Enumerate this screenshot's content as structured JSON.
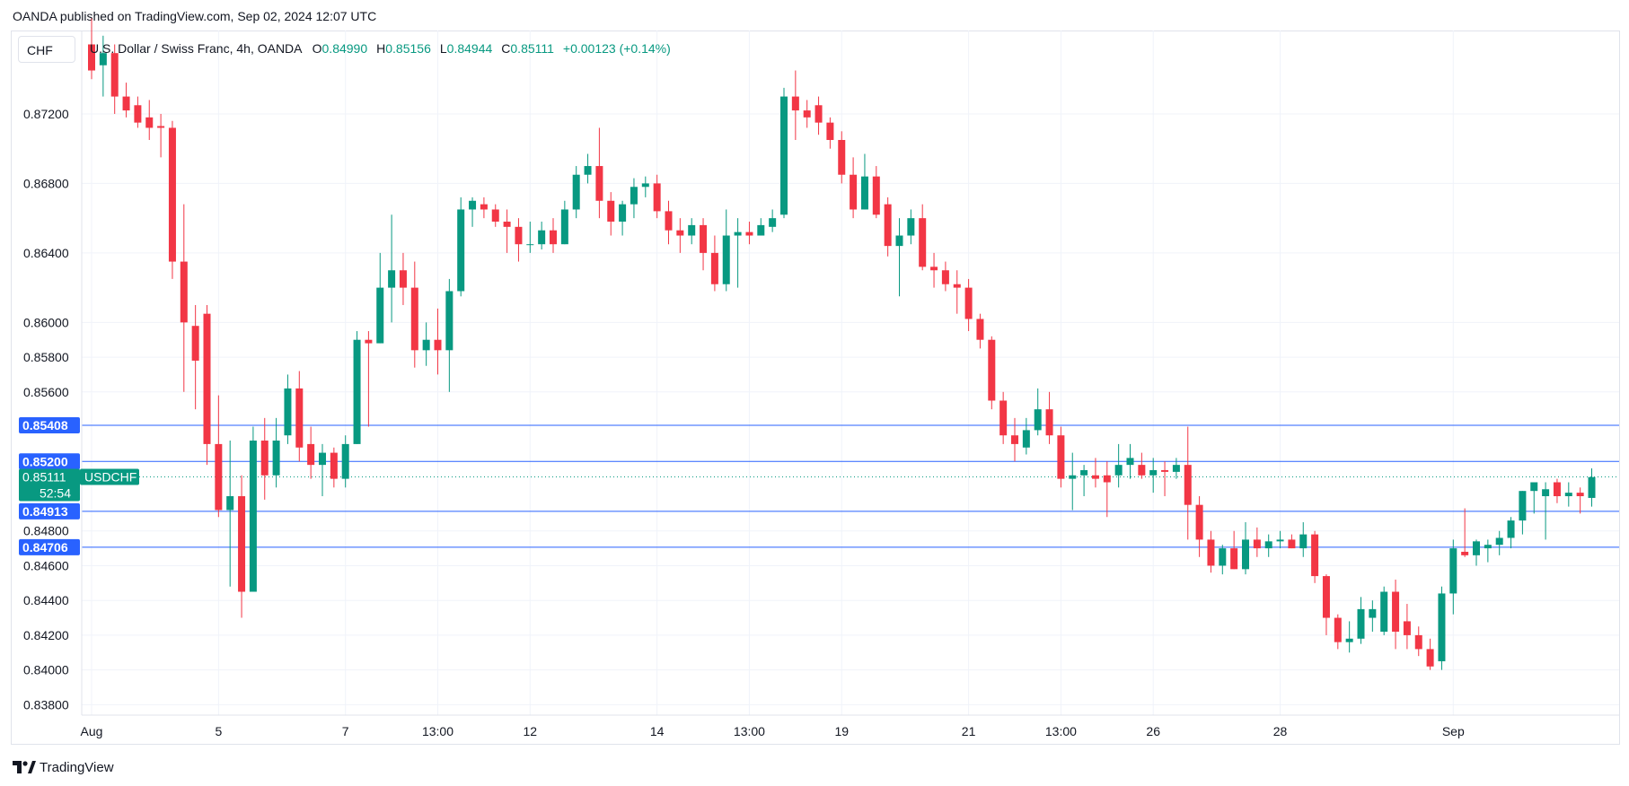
{
  "header": {
    "published": "OANDA published on TradingView.com, Sep 02, 2024 12:07 UTC"
  },
  "currency_selector": "CHF",
  "legend": {
    "title": "U.S. Dollar / Swiss Franc, 4h, OANDA",
    "o_label": "O",
    "o_value": "0.84990",
    "h_label": "H",
    "h_value": "0.85156",
    "l_label": "L",
    "l_value": "0.84944",
    "c_label": "C",
    "c_value": "0.85111",
    "change": "+0.00123 (+0.14%)"
  },
  "branding": "TradingView",
  "colors": {
    "up": "#089981",
    "down": "#f23645",
    "hline": "#2962ff",
    "label_bg": "#2962ff",
    "grid": "#f0f3fa"
  },
  "chart_data": {
    "type": "candlestick",
    "symbol": "USDCHF",
    "interval": "4h",
    "ylim": [
      0.8374,
      0.8768
    ],
    "y_ticks": [
      "0.87200",
      "0.86800",
      "0.86400",
      "0.86000",
      "0.85800",
      "0.85600",
      "0.84800",
      "0.84600",
      "0.84400",
      "0.84200",
      "0.84000",
      "0.83800"
    ],
    "x_ticks": [
      {
        "label": "Aug",
        "i": 0
      },
      {
        "label": "5",
        "i": 11
      },
      {
        "label": "7",
        "i": 22
      },
      {
        "label": "13:00",
        "i": 30
      },
      {
        "label": "12",
        "i": 38
      },
      {
        "label": "14",
        "i": 49
      },
      {
        "label": "13:00",
        "i": 57
      },
      {
        "label": "19",
        "i": 65
      },
      {
        "label": "21",
        "i": 76
      },
      {
        "label": "13:00",
        "i": 84
      },
      {
        "label": "26",
        "i": 92
      },
      {
        "label": "28",
        "i": 103
      },
      {
        "label": "Sep",
        "i": 118
      }
    ],
    "horizontal_lines": [
      "0.85408",
      "0.85200",
      "0.84913",
      "0.84706"
    ],
    "current_price": {
      "value": "0.85111",
      "countdown": "52:54",
      "label": "USDCHF"
    },
    "candles": [
      [
        0.876,
        0.8775,
        0.874,
        0.8745
      ],
      [
        0.8748,
        0.8765,
        0.873,
        0.8755
      ],
      [
        0.8755,
        0.876,
        0.872,
        0.873
      ],
      [
        0.873,
        0.8738,
        0.8718,
        0.8722
      ],
      [
        0.8725,
        0.873,
        0.8712,
        0.8715
      ],
      [
        0.8718,
        0.8728,
        0.8705,
        0.8712
      ],
      [
        0.8713,
        0.872,
        0.8695,
        0.8712
      ],
      [
        0.8712,
        0.8716,
        0.8625,
        0.8635
      ],
      [
        0.8635,
        0.8668,
        0.856,
        0.86
      ],
      [
        0.8598,
        0.861,
        0.855,
        0.8578
      ],
      [
        0.8605,
        0.861,
        0.8518,
        0.853
      ],
      [
        0.853,
        0.8558,
        0.8488,
        0.8492
      ],
      [
        0.8492,
        0.8532,
        0.8448,
        0.85
      ],
      [
        0.85,
        0.8512,
        0.843,
        0.8445
      ],
      [
        0.8445,
        0.854,
        0.8445,
        0.8532
      ],
      [
        0.8532,
        0.8545,
        0.8498,
        0.8512
      ],
      [
        0.8512,
        0.8545,
        0.8505,
        0.8532
      ],
      [
        0.8535,
        0.857,
        0.853,
        0.8562
      ],
      [
        0.8562,
        0.8572,
        0.852,
        0.8528
      ],
      [
        0.853,
        0.854,
        0.851,
        0.8518
      ],
      [
        0.8518,
        0.853,
        0.85,
        0.8525
      ],
      [
        0.8525,
        0.8528,
        0.8505,
        0.851
      ],
      [
        0.851,
        0.8535,
        0.8505,
        0.853
      ],
      [
        0.853,
        0.8595,
        0.853,
        0.859
      ],
      [
        0.859,
        0.8595,
        0.854,
        0.8588
      ],
      [
        0.8588,
        0.864,
        0.8588,
        0.862
      ],
      [
        0.862,
        0.8662,
        0.86,
        0.863
      ],
      [
        0.863,
        0.864,
        0.861,
        0.862
      ],
      [
        0.862,
        0.8635,
        0.8574,
        0.8584
      ],
      [
        0.8584,
        0.86,
        0.8575,
        0.859
      ],
      [
        0.859,
        0.8608,
        0.857,
        0.8584
      ],
      [
        0.8584,
        0.8625,
        0.856,
        0.8618
      ],
      [
        0.8618,
        0.8672,
        0.8615,
        0.8665
      ],
      [
        0.8665,
        0.8672,
        0.8655,
        0.867
      ],
      [
        0.8668,
        0.8672,
        0.866,
        0.8665
      ],
      [
        0.8665,
        0.8668,
        0.8655,
        0.8658
      ],
      [
        0.8658,
        0.8665,
        0.864,
        0.8655
      ],
      [
        0.8655,
        0.866,
        0.8635,
        0.8645
      ],
      [
        0.8645,
        0.8658,
        0.864,
        0.8645
      ],
      [
        0.8645,
        0.8658,
        0.8642,
        0.8653
      ],
      [
        0.8653,
        0.866,
        0.864,
        0.8645
      ],
      [
        0.8645,
        0.867,
        0.8645,
        0.8665
      ],
      [
        0.8665,
        0.869,
        0.866,
        0.8685
      ],
      [
        0.8685,
        0.8697,
        0.868,
        0.869
      ],
      [
        0.869,
        0.8712,
        0.866,
        0.867
      ],
      [
        0.867,
        0.8675,
        0.865,
        0.8658
      ],
      [
        0.8658,
        0.867,
        0.865,
        0.8668
      ],
      [
        0.8668,
        0.8683,
        0.866,
        0.8678
      ],
      [
        0.8678,
        0.8684,
        0.8672,
        0.868
      ],
      [
        0.868,
        0.8685,
        0.866,
        0.8664
      ],
      [
        0.8664,
        0.867,
        0.8645,
        0.8653
      ],
      [
        0.8653,
        0.866,
        0.864,
        0.865
      ],
      [
        0.865,
        0.866,
        0.8645,
        0.8656
      ],
      [
        0.8656,
        0.866,
        0.863,
        0.864
      ],
      [
        0.864,
        0.865,
        0.8618,
        0.8622
      ],
      [
        0.8622,
        0.8665,
        0.8618,
        0.865
      ],
      [
        0.865,
        0.866,
        0.862,
        0.8652
      ],
      [
        0.8652,
        0.8658,
        0.8645,
        0.865
      ],
      [
        0.865,
        0.866,
        0.865,
        0.8656
      ],
      [
        0.8655,
        0.8665,
        0.8652,
        0.866
      ],
      [
        0.8662,
        0.8735,
        0.866,
        0.873
      ],
      [
        0.873,
        0.8745,
        0.8705,
        0.8722
      ],
      [
        0.8722,
        0.8728,
        0.8712,
        0.8718
      ],
      [
        0.8725,
        0.873,
        0.8708,
        0.8715
      ],
      [
        0.8715,
        0.8718,
        0.87,
        0.8705
      ],
      [
        0.8705,
        0.871,
        0.868,
        0.8685
      ],
      [
        0.8685,
        0.8695,
        0.866,
        0.8665
      ],
      [
        0.8665,
        0.8697,
        0.8665,
        0.8684
      ],
      [
        0.8684,
        0.869,
        0.866,
        0.8662
      ],
      [
        0.8668,
        0.8672,
        0.8638,
        0.8644
      ],
      [
        0.8644,
        0.866,
        0.8615,
        0.865
      ],
      [
        0.865,
        0.8665,
        0.8645,
        0.866
      ],
      [
        0.866,
        0.8668,
        0.863,
        0.8632
      ],
      [
        0.8632,
        0.864,
        0.862,
        0.863
      ],
      [
        0.863,
        0.8635,
        0.8618,
        0.8622
      ],
      [
        0.8622,
        0.863,
        0.8605,
        0.862
      ],
      [
        0.862,
        0.8625,
        0.8595,
        0.8602
      ],
      [
        0.8602,
        0.8605,
        0.8585,
        0.859
      ],
      [
        0.859,
        0.8592,
        0.855,
        0.8555
      ],
      [
        0.8555,
        0.856,
        0.853,
        0.8535
      ],
      [
        0.8535,
        0.8545,
        0.852,
        0.853
      ],
      [
        0.8528,
        0.8545,
        0.8524,
        0.8538
      ],
      [
        0.8538,
        0.8562,
        0.8535,
        0.855
      ],
      [
        0.855,
        0.856,
        0.853,
        0.8535
      ],
      [
        0.8535,
        0.854,
        0.8505,
        0.851
      ],
      [
        0.851,
        0.8525,
        0.8492,
        0.8512
      ],
      [
        0.8512,
        0.8518,
        0.85,
        0.8515
      ],
      [
        0.8512,
        0.8522,
        0.8505,
        0.851
      ],
      [
        0.8512,
        0.852,
        0.8488,
        0.8508
      ],
      [
        0.8512,
        0.853,
        0.8505,
        0.8518
      ],
      [
        0.8518,
        0.853,
        0.851,
        0.8522
      ],
      [
        0.8518,
        0.8525,
        0.851,
        0.8512
      ],
      [
        0.8512,
        0.8522,
        0.8502,
        0.8515
      ],
      [
        0.8515,
        0.852,
        0.85,
        0.8514
      ],
      [
        0.8514,
        0.8522,
        0.851,
        0.8518
      ],
      [
        0.8518,
        0.854,
        0.8475,
        0.8495
      ],
      [
        0.8495,
        0.85,
        0.8465,
        0.8475
      ],
      [
        0.8475,
        0.848,
        0.8456,
        0.846
      ],
      [
        0.846,
        0.8472,
        0.8455,
        0.847
      ],
      [
        0.847,
        0.848,
        0.8458,
        0.8458
      ],
      [
        0.8458,
        0.8485,
        0.8455,
        0.8475
      ],
      [
        0.8475,
        0.8482,
        0.8465,
        0.847
      ],
      [
        0.847,
        0.8478,
        0.8465,
        0.8474
      ],
      [
        0.8474,
        0.848,
        0.847,
        0.8475
      ],
      [
        0.8475,
        0.8478,
        0.847,
        0.847
      ],
      [
        0.847,
        0.8485,
        0.8465,
        0.8478
      ],
      [
        0.8478,
        0.848,
        0.845,
        0.8454
      ],
      [
        0.8454,
        0.8455,
        0.842,
        0.843
      ],
      [
        0.843,
        0.8432,
        0.8412,
        0.8416
      ],
      [
        0.8416,
        0.8428,
        0.841,
        0.8418
      ],
      [
        0.8418,
        0.8442,
        0.8415,
        0.8435
      ],
      [
        0.843,
        0.844,
        0.8422,
        0.8435
      ],
      [
        0.8422,
        0.8448,
        0.842,
        0.8445
      ],
      [
        0.8445,
        0.8452,
        0.8412,
        0.8422
      ],
      [
        0.8428,
        0.8438,
        0.8412,
        0.842
      ],
      [
        0.842,
        0.8425,
        0.8408,
        0.8412
      ],
      [
        0.8412,
        0.8418,
        0.84,
        0.8402
      ],
      [
        0.8405,
        0.8448,
        0.84,
        0.8444
      ],
      [
        0.8444,
        0.8475,
        0.8432,
        0.847
      ],
      [
        0.8468,
        0.8493,
        0.8465,
        0.8466
      ],
      [
        0.8466,
        0.8475,
        0.846,
        0.8474
      ],
      [
        0.847,
        0.8475,
        0.8462,
        0.8472
      ],
      [
        0.8472,
        0.848,
        0.8466,
        0.8476
      ],
      [
        0.8476,
        0.8488,
        0.847,
        0.8486
      ],
      [
        0.8486,
        0.8503,
        0.8478,
        0.8503
      ],
      [
        0.8503,
        0.8508,
        0.849,
        0.8508
      ],
      [
        0.85,
        0.8508,
        0.8475,
        0.8504
      ],
      [
        0.8508,
        0.851,
        0.8496,
        0.85
      ],
      [
        0.85,
        0.8508,
        0.8494,
        0.8502
      ],
      [
        0.8502,
        0.8505,
        0.849,
        0.85
      ],
      [
        0.8499,
        0.8516,
        0.8494,
        0.8511
      ]
    ]
  }
}
